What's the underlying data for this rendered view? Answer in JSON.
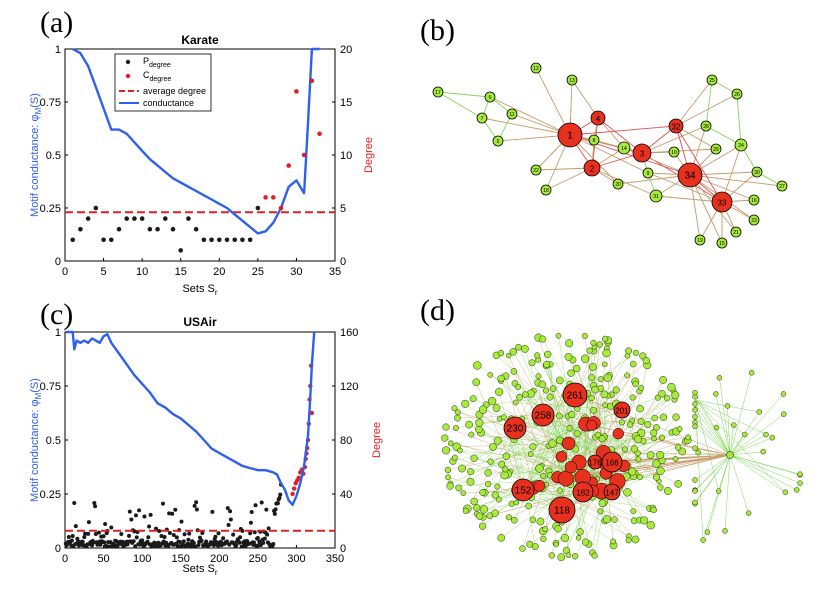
{
  "panels": {
    "a": "(a)",
    "b": "(b)",
    "c": "(c)",
    "d": "(d)"
  },
  "colors": {
    "conductance": "#2f5ff0",
    "average": "#e02020",
    "peripheral": "#1a1a1a",
    "core": "#e02020",
    "node_green": "#a6ea3a",
    "node_red": "#e8301e",
    "edge_green": "#7ed957",
    "edge_brown": "#c89a6a",
    "edge_red": "#e05050"
  },
  "chart_data": [
    {
      "type": "line",
      "id": "karate",
      "title": "Karate",
      "xlabel": "Sets S",
      "xlabel_sub": "r",
      "ylabel": "Motif conductance: φ",
      "ylabel_sub": "M",
      "ylabel_tail": "(S)",
      "y2label": "Degree",
      "xlim": [
        0,
        35
      ],
      "ylim": [
        0,
        1
      ],
      "y2lim": [
        0,
        20
      ],
      "xticks": [
        "0",
        "5",
        "10",
        "15",
        "20",
        "25",
        "30",
        "35"
      ],
      "yticks": [
        "0",
        "0.25",
        "0.5",
        "0.75",
        "1"
      ],
      "y2ticks": [
        "0",
        "5",
        "10",
        "15",
        "20"
      ],
      "legend": {
        "p_degree": "P",
        "p_degree_sub": "degree",
        "c_degree": "C",
        "c_degree_sub": "degree",
        "average": "average degree",
        "conductance": "conductance"
      },
      "average_degree": 4.6,
      "conductance": {
        "x": [
          1,
          2,
          3,
          4,
          5,
          6,
          7,
          8,
          9,
          10,
          11,
          12,
          13,
          14,
          15,
          16,
          17,
          18,
          19,
          20,
          21,
          22,
          23,
          24,
          25,
          26,
          27,
          28,
          29,
          30,
          31,
          31.5,
          32,
          33
        ],
        "y": [
          1.0,
          0.98,
          0.92,
          0.82,
          0.72,
          0.62,
          0.62,
          0.6,
          0.56,
          0.52,
          0.48,
          0.45,
          0.42,
          0.39,
          0.37,
          0.35,
          0.33,
          0.31,
          0.29,
          0.27,
          0.25,
          0.22,
          0.19,
          0.16,
          0.13,
          0.14,
          0.18,
          0.25,
          0.35,
          0.38,
          0.32,
          0.65,
          1.0,
          1.0
        ]
      },
      "p_degree": {
        "x": [
          1,
          2,
          3,
          4,
          5,
          6,
          7,
          8,
          9,
          10,
          11,
          12,
          13,
          14,
          15,
          16,
          17,
          18,
          19,
          20,
          21,
          22,
          23,
          24,
          25
        ],
        "y": [
          2,
          3,
          4,
          5,
          2,
          2,
          3,
          4,
          4,
          4,
          3,
          3,
          4,
          3,
          1,
          4,
          3,
          2,
          2,
          2,
          2,
          2,
          2,
          2,
          5
        ]
      },
      "c_degree": {
        "x": [
          26,
          27,
          28,
          29,
          30,
          31,
          32,
          33
        ],
        "y": [
          6,
          6,
          5,
          9,
          16,
          10,
          17,
          12
        ]
      }
    },
    {
      "type": "line",
      "id": "usair",
      "title": "USAir",
      "xlabel": "Sets S",
      "xlabel_sub": "r",
      "ylabel": "Motif conductance: φ",
      "ylabel_sub": "M",
      "ylabel_tail": "(S)",
      "y2label": "Degree",
      "xlim": [
        0,
        350
      ],
      "ylim": [
        0,
        1
      ],
      "y2lim": [
        0,
        160
      ],
      "xticks": [
        "0",
        "50",
        "100",
        "150",
        "200",
        "250",
        "300",
        "350"
      ],
      "yticks": [
        "0",
        "0.25",
        "0.5",
        "0.75",
        "1"
      ],
      "y2ticks": [
        "0",
        "40",
        "80",
        "120",
        "160"
      ],
      "average_degree": 12.8,
      "conductance": {
        "x": [
          1,
          5,
          10,
          12,
          15,
          20,
          25,
          30,
          35,
          40,
          45,
          50,
          55,
          60,
          70,
          80,
          90,
          100,
          110,
          120,
          130,
          140,
          150,
          160,
          170,
          180,
          190,
          200,
          210,
          220,
          230,
          240,
          250,
          260,
          270,
          275,
          280,
          285,
          290,
          295,
          300,
          305,
          310,
          315,
          318,
          320,
          323
        ],
        "y": [
          1.0,
          1.0,
          1.0,
          0.92,
          0.96,
          0.95,
          0.96,
          0.95,
          0.97,
          0.96,
          0.95,
          0.98,
          0.99,
          0.95,
          0.9,
          0.85,
          0.8,
          0.76,
          0.72,
          0.67,
          0.65,
          0.62,
          0.6,
          0.57,
          0.54,
          0.5,
          0.46,
          0.44,
          0.42,
          0.4,
          0.38,
          0.37,
          0.36,
          0.36,
          0.35,
          0.34,
          0.3,
          0.27,
          0.22,
          0.2,
          0.24,
          0.3,
          0.38,
          0.52,
          0.7,
          0.85,
          1.0
        ]
      },
      "p_degree_count": 280,
      "c_degree": {
        "x": [
          295,
          297,
          299,
          301,
          303,
          305,
          307,
          309,
          311,
          312,
          313,
          314,
          315,
          316,
          317,
          318,
          319,
          320
        ],
        "y": [
          40,
          44,
          48,
          50,
          52,
          56,
          58,
          55,
          60,
          66,
          70,
          74,
          80,
          92,
          110,
          120,
          135,
          100
        ]
      }
    }
  ],
  "karate_network": {
    "green_nodes": [
      "17",
      "12",
      "13",
      "6",
      "7",
      "11",
      "5",
      "22",
      "18",
      "8",
      "14",
      "20",
      "9",
      "31",
      "10",
      "28",
      "25",
      "26",
      "29",
      "24",
      "30",
      "27",
      "16",
      "23",
      "21",
      "15",
      "19"
    ],
    "red_nodes": [
      "1",
      "4",
      "2",
      "3",
      "32",
      "34",
      "33"
    ]
  },
  "usair_network": {
    "red_nodes": [
      "261",
      "258",
      "230",
      "152",
      "118",
      "182",
      "166",
      "201",
      "147",
      "176"
    ]
  }
}
